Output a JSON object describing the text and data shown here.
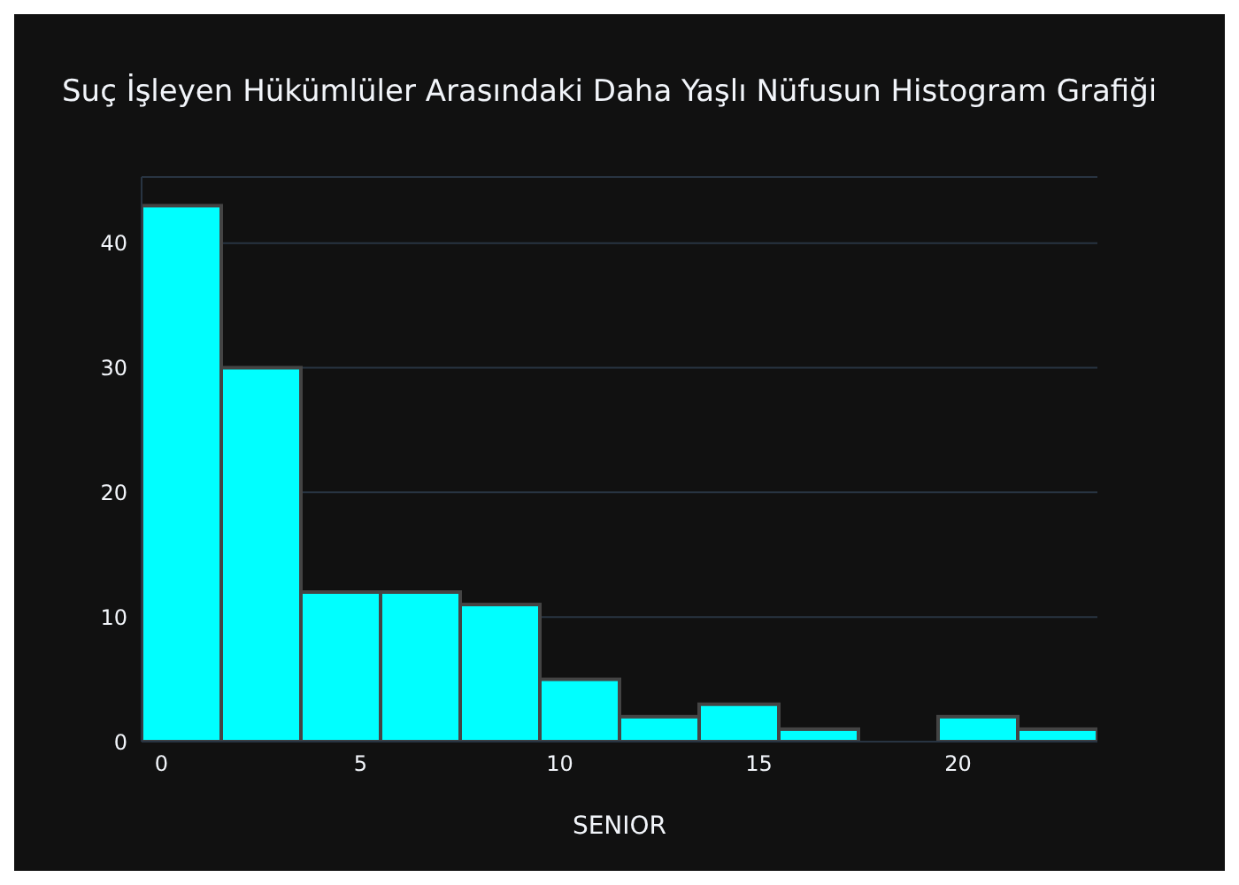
{
  "chart_data": {
    "type": "histogram",
    "title": "Suç İşleyen Hükümlüler Arasındaki Daha Yaşlı Nüfusun Histogram Grafiği",
    "xlabel": "SENIOR",
    "bins": [
      -0.5,
      1.5,
      3.5,
      5.5,
      7.5,
      9.5,
      11.5,
      13.5,
      15.5,
      17.5,
      19.5,
      21.5,
      23.5
    ],
    "values": [
      43,
      30,
      12,
      12,
      11,
      5,
      2,
      3,
      1,
      0,
      2,
      1
    ],
    "color": "#00ffff",
    "xlim": [
      -0.5,
      23.5
    ],
    "xticks": [
      0,
      5,
      10,
      15,
      20
    ],
    "ylim": [
      0,
      45.3
    ],
    "yticks": [
      0,
      10,
      20,
      30,
      40
    ],
    "grid": "y"
  }
}
